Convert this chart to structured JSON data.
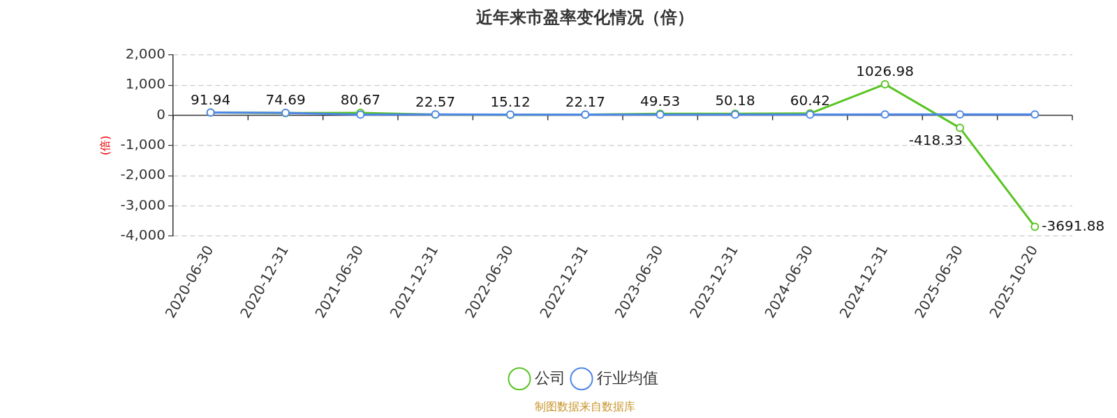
{
  "chart_data": {
    "type": "line",
    "title": "近年来市盈率变化情况（倍）",
    "ylabel": "(倍)",
    "annotations": [
      "制图数据来自数据库"
    ],
    "categories": [
      "2020-06-30",
      "2020-12-31",
      "2021-06-30",
      "2021-12-31",
      "2022-06-30",
      "2022-12-31",
      "2023-06-30",
      "2023-12-31",
      "2024-06-30",
      "2024-12-31",
      "2025-06-30",
      "2025-10-20"
    ],
    "series": [
      {
        "name": "公司",
        "color": "#58c422",
        "values": [
          91.94,
          74.69,
          80.67,
          22.57,
          15.12,
          22.17,
          49.53,
          50.18,
          60.42,
          1026.98,
          -418.33,
          -3691.88
        ],
        "value_labels": [
          "91.94",
          "74.69",
          "80.67",
          "22.57",
          "15.12",
          "22.17",
          "49.53",
          "50.18",
          "60.42",
          "1026.98",
          "-418.33",
          "-3691.88"
        ]
      },
      {
        "name": "行业均值",
        "color": "#4e86e6",
        "values": [
          90,
          80,
          20,
          30,
          20,
          20,
          20,
          20,
          20,
          30,
          30,
          30
        ]
      }
    ],
    "ylim": [
      -4000,
      2000
    ],
    "yticks": [
      {
        "value": 2000,
        "label": "2,000"
      },
      {
        "value": 1000,
        "label": "1,000"
      },
      0,
      {
        "value": -1000,
        "label": "-1,000"
      },
      {
        "value": -2000,
        "label": "-2,000"
      },
      {
        "value": -3000,
        "label": "-3,000"
      },
      {
        "value": -4000,
        "label": "-4,000"
      }
    ],
    "grid": "y",
    "legend": "bottom",
    "marker": "circle"
  }
}
